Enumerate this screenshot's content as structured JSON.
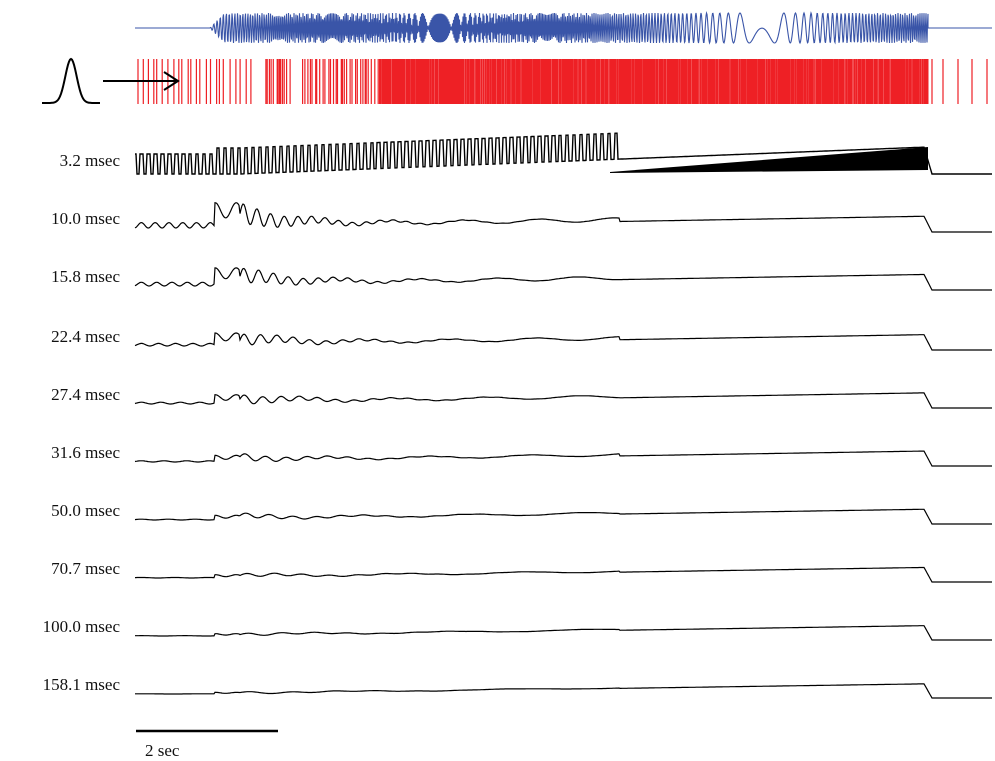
{
  "figure": {
    "stimulus_color": "#3a55a8",
    "spike_color": "#ee2025",
    "trace_color": "#000000",
    "scale_bar_label": "2 sec",
    "traces": [
      {
        "label": "3.2 msec"
      },
      {
        "label": "10.0 msec"
      },
      {
        "label": "15.8 msec"
      },
      {
        "label": "22.4 msec"
      },
      {
        "label": "27.4 msec"
      },
      {
        "label": "31.6 msec"
      },
      {
        "label": "50.0 msec"
      },
      {
        "label": "70.7 msec"
      },
      {
        "label": "100.0 msec"
      },
      {
        "label": "158.1 msec"
      }
    ]
  }
}
